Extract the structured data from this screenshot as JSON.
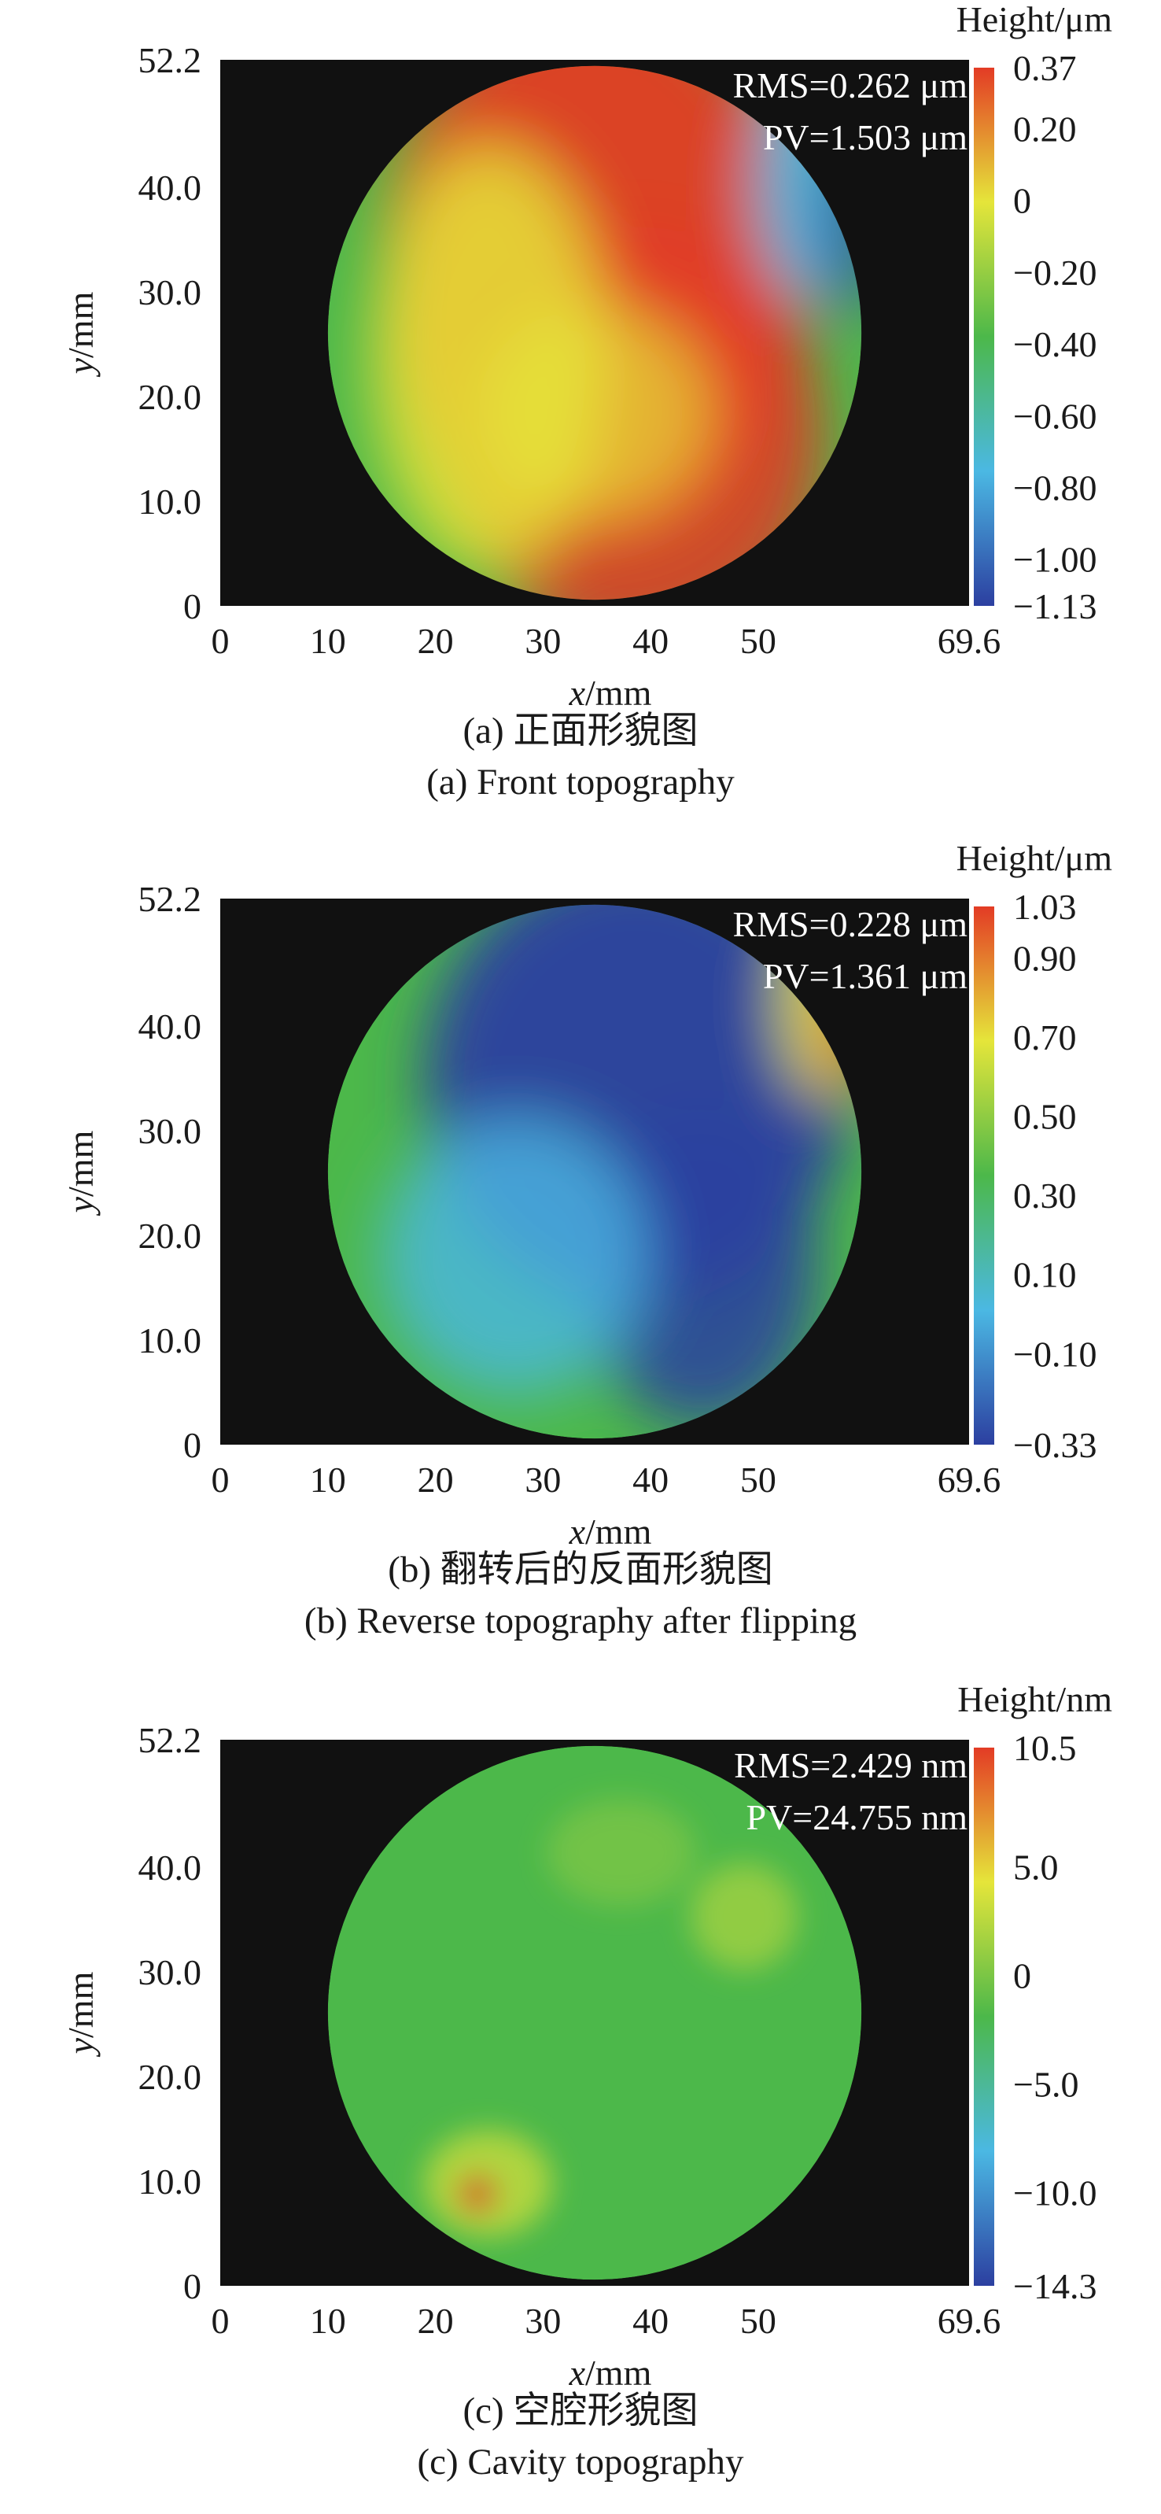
{
  "panels": [
    {
      "id": "a",
      "chart_data": {
        "type": "heatmap",
        "xlabel_var": "x",
        "xlabel_unit": "/mm",
        "ylabel_var": "y",
        "ylabel_unit": "/mm",
        "x_ticks": [
          "0",
          "10",
          "20",
          "30",
          "40",
          "50",
          "69.6"
        ],
        "x_tick_values": [
          0,
          10,
          20,
          30,
          40,
          50,
          69.6
        ],
        "y_ticks": [
          "0",
          "10.0",
          "20.0",
          "30.0",
          "40.0",
          "52.2"
        ],
        "y_tick_values": [
          0,
          10,
          20,
          30,
          40,
          52.2
        ],
        "xlim": [
          0,
          69.6
        ],
        "ylim": [
          0,
          52.2
        ],
        "colorbar_label": "Height/μm",
        "colorbar_ticks": [
          "0.37",
          "0.20",
          "0",
          "−0.20",
          "−0.40",
          "−0.60",
          "−0.80",
          "−1.00",
          "−1.13"
        ],
        "colorbar_values": [
          0.37,
          0.2,
          0,
          -0.2,
          -0.4,
          -0.6,
          -0.8,
          -1.0,
          -1.13
        ],
        "range": [
          -1.13,
          0.37
        ],
        "annotations": [
          "RMS=0.262 μm",
          "PV=1.503 μm"
        ],
        "aperture_center": [
          34.8,
          26.1
        ],
        "aperture_radius": 24.8,
        "colors": [
          "#2c3fa0",
          "#4bb8e3",
          "#4cb84a",
          "#e5e53a",
          "#e33b25"
        ]
      },
      "caption_cn": "(a) 正面形貌图",
      "caption_en": "(a) Front topography"
    },
    {
      "id": "b",
      "chart_data": {
        "type": "heatmap",
        "xlabel_var": "x",
        "xlabel_unit": "/mm",
        "ylabel_var": "y",
        "ylabel_unit": "/mm",
        "x_ticks": [
          "0",
          "10",
          "20",
          "30",
          "40",
          "50",
          "69.6"
        ],
        "x_tick_values": [
          0,
          10,
          20,
          30,
          40,
          50,
          69.6
        ],
        "y_ticks": [
          "0",
          "10.0",
          "20.0",
          "30.0",
          "40.0",
          "52.2"
        ],
        "y_tick_values": [
          0,
          10,
          20,
          30,
          40,
          52.2
        ],
        "xlim": [
          0,
          69.6
        ],
        "ylim": [
          0,
          52.2
        ],
        "colorbar_label": "Height/μm",
        "colorbar_ticks": [
          "1.03",
          "0.90",
          "0.70",
          "0.50",
          "0.30",
          "0.10",
          "−0.10",
          "−0.33"
        ],
        "colorbar_values": [
          1.03,
          0.9,
          0.7,
          0.5,
          0.3,
          0.1,
          -0.1,
          -0.33
        ],
        "range": [
          -0.33,
          1.03
        ],
        "annotations": [
          "RMS=0.228 μm",
          "PV=1.361 μm"
        ],
        "aperture_center": [
          34.8,
          26.1
        ],
        "aperture_radius": 24.8,
        "colors": [
          "#2c3fa0",
          "#4bb8e3",
          "#4cb84a",
          "#e5e53a",
          "#e33b25"
        ]
      },
      "caption_cn": "(b) 翻转后的反面形貌图",
      "caption_en": "(b) Reverse topography after flipping"
    },
    {
      "id": "c",
      "chart_data": {
        "type": "heatmap",
        "xlabel_var": "x",
        "xlabel_unit": "/mm",
        "ylabel_var": "y",
        "ylabel_unit": "/mm",
        "x_ticks": [
          "0",
          "10",
          "20",
          "30",
          "40",
          "50",
          "69.6"
        ],
        "x_tick_values": [
          0,
          10,
          20,
          30,
          40,
          50,
          69.6
        ],
        "y_ticks": [
          "0",
          "10.0",
          "20.0",
          "30.0",
          "40.0",
          "52.2"
        ],
        "y_tick_values": [
          0,
          10,
          20,
          30,
          40,
          52.2
        ],
        "xlim": [
          0,
          69.6
        ],
        "ylim": [
          0,
          52.2
        ],
        "colorbar_label": "Height/nm",
        "colorbar_ticks": [
          "10.5",
          "5.0",
          "0",
          "−5.0",
          "−10.0",
          "−14.3"
        ],
        "colorbar_values": [
          10.5,
          5.0,
          0,
          -5.0,
          -10.0,
          -14.3
        ],
        "range": [
          -14.3,
          10.5
        ],
        "annotations": [
          "RMS=2.429 nm",
          "PV=24.755 nm"
        ],
        "aperture_center": [
          34.8,
          26.1
        ],
        "aperture_radius": 24.8,
        "colors": [
          "#2c3fa0",
          "#4bb8e3",
          "#4cb84a",
          "#e5e53a",
          "#e33b25"
        ]
      },
      "caption_cn": "(c) 空腔形貌图",
      "caption_en": "(c) Cavity topography"
    }
  ]
}
